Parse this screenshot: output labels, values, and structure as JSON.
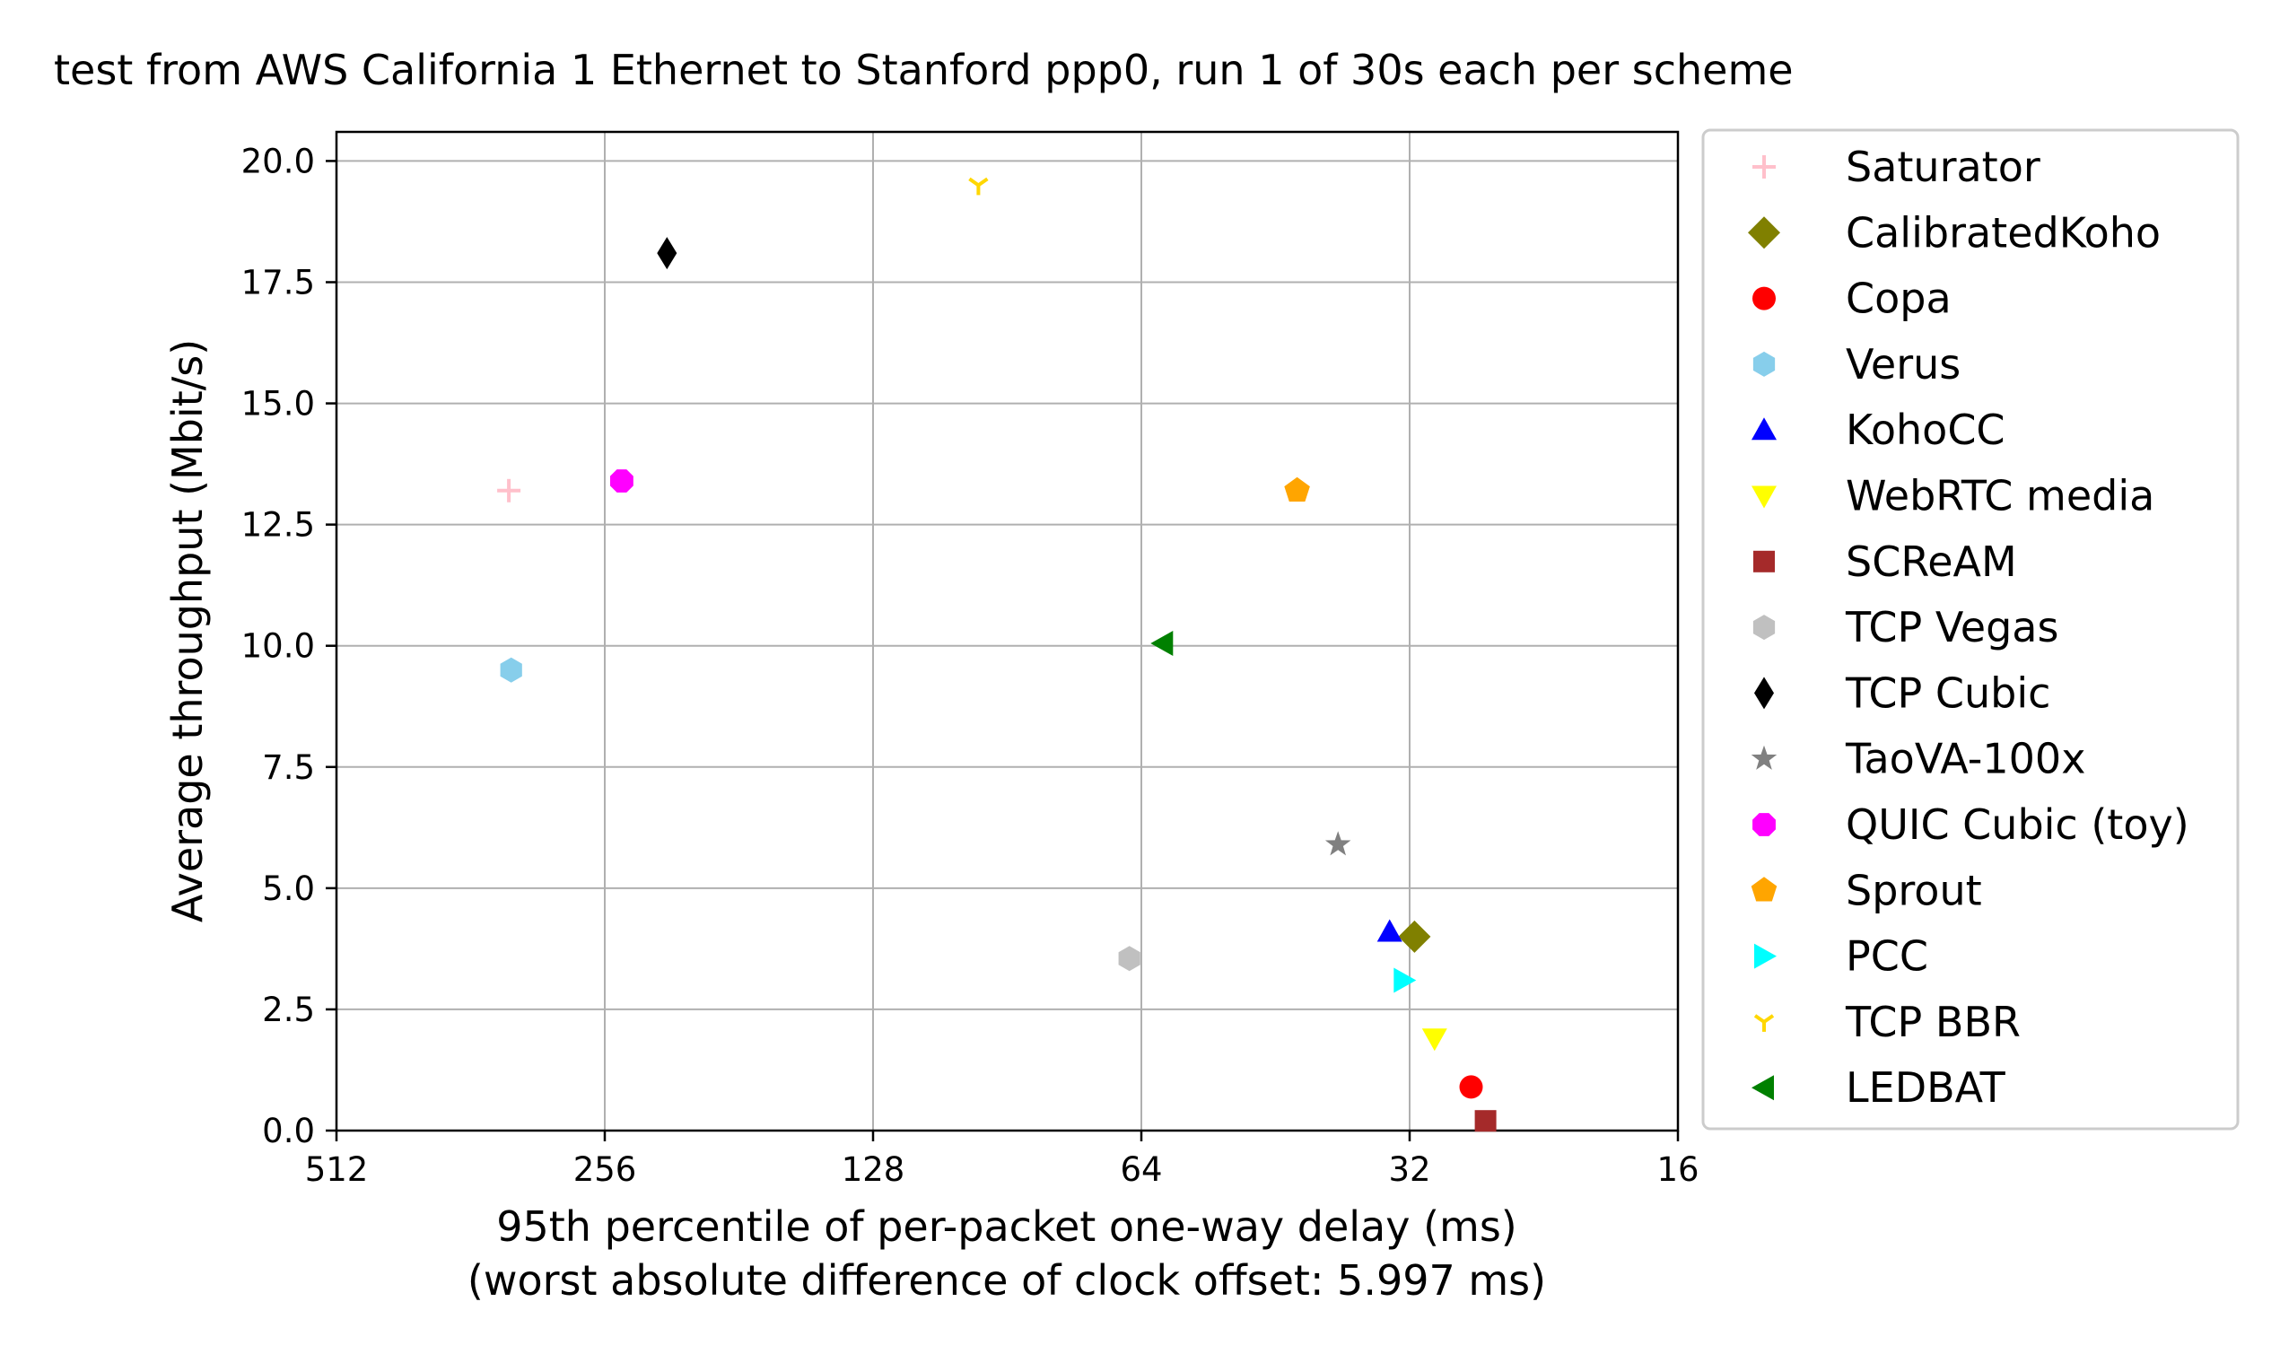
{
  "chart_data": {
    "type": "scatter",
    "title": "test from AWS California 1 Ethernet to Stanford ppp0, run 1 of 30s each per scheme",
    "xlabel": "95th percentile of per-packet one-way delay (ms)",
    "xlabel_line2": "(worst absolute difference of clock offset: 5.997 ms)",
    "ylabel": "Average throughput (Mbit/s)",
    "x_scale": "log2",
    "x_reversed": true,
    "xlim": [
      512,
      16
    ],
    "ylim": [
      0,
      20.6
    ],
    "x_ticks": [
      512,
      256,
      128,
      64,
      32,
      16
    ],
    "x_tick_labels": [
      "512",
      "256",
      "128",
      "64",
      "32",
      "16"
    ],
    "y_ticks": [
      0,
      2.5,
      5,
      7.5,
      10,
      12.5,
      15,
      17.5,
      20
    ],
    "y_tick_labels": [
      "0.0",
      "2.5",
      "5.0",
      "7.5",
      "10.0",
      "12.5",
      "15.0",
      "17.5",
      "20.0"
    ],
    "grid": true,
    "legend_position": "outside-right",
    "series": [
      {
        "name": "Saturator",
        "marker": "plus",
        "color": "#ffc0cb",
        "x": 328,
        "y": 13.2
      },
      {
        "name": "CalibratedKoho",
        "marker": "diamond",
        "color": "#808000",
        "x": 31.6,
        "y": 4.0
      },
      {
        "name": "Copa",
        "marker": "circle",
        "color": "#ff0000",
        "x": 27.3,
        "y": 0.9
      },
      {
        "name": "Verus",
        "marker": "hexagon",
        "color": "#87ceeb",
        "x": 326,
        "y": 9.5
      },
      {
        "name": "KohoCC",
        "marker": "triangle-up",
        "color": "#0000ff",
        "x": 33.7,
        "y": 4.1
      },
      {
        "name": "WebRTC media",
        "marker": "triangle-down",
        "color": "#ffff00",
        "x": 30.0,
        "y": 1.9
      },
      {
        "name": "SCReAM",
        "marker": "square",
        "color": "#a52a2a",
        "x": 26.3,
        "y": 0.2
      },
      {
        "name": "TCP Vegas",
        "marker": "hexagon",
        "color": "#c0c0c0",
        "x": 66.0,
        "y": 3.55
      },
      {
        "name": "TCP Cubic",
        "marker": "thin-diamond",
        "color": "#000000",
        "x": 218,
        "y": 18.1
      },
      {
        "name": "TaoVA-100x",
        "marker": "star",
        "color": "#808080",
        "x": 38.5,
        "y": 5.9
      },
      {
        "name": "QUIC Cubic (toy)",
        "marker": "octagon",
        "color": "#ff00ff",
        "x": 245,
        "y": 13.4
      },
      {
        "name": "Sprout",
        "marker": "pentagon",
        "color": "#ffa500",
        "x": 42.8,
        "y": 13.2
      },
      {
        "name": "PCC",
        "marker": "triangle-right",
        "color": "#00ffff",
        "x": 32.5,
        "y": 3.1
      },
      {
        "name": "TCP BBR",
        "marker": "tri-down",
        "color": "#ffd700",
        "x": 97.5,
        "y": 19.5
      },
      {
        "name": "LEDBAT",
        "marker": "triangle-left",
        "color": "#008000",
        "x": 60.5,
        "y": 10.05
      }
    ]
  }
}
